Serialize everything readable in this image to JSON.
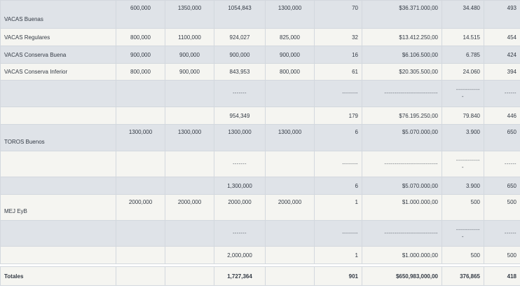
{
  "rows": [
    {
      "label": "VACAS Buenas",
      "c1": "600,000",
      "c2": "1350,000",
      "c3": "1054,843",
      "c4": "1300,000",
      "c5": "70",
      "c6": "$36.371.000,00",
      "c7": "34.480",
      "c8": "493"
    },
    {
      "label": "VACAS Regulares",
      "c1": "800,000",
      "c2": "1100,000",
      "c3": "924,027",
      "c4": "825,000",
      "c5": "32",
      "c6": "$13.412.250,00",
      "c7": "14.515",
      "c8": "454"
    },
    {
      "label": "VACAS Conserva Buena",
      "c1": "900,000",
      "c2": "900,000",
      "c3": "900,000",
      "c4": "900,000",
      "c5": "16",
      "c6": "$6.106.500,00",
      "c7": "6.785",
      "c8": "424"
    },
    {
      "label": "VACAS Conserva Inferior",
      "c1": "800,000",
      "c2": "900,000",
      "c3": "843,953",
      "c4": "800,000",
      "c5": "61",
      "c6": "$20.305.500,00",
      "c7": "24.060",
      "c8": "394"
    }
  ],
  "separators": {
    "c3": "-------",
    "c5": "--------",
    "c6": "---------------------------",
    "c7": "------------",
    "c7_minus": "-",
    "c8": "------"
  },
  "vacas_subtotal": {
    "c3": "954,349",
    "c5": "179",
    "c6": "$76.195.250,00",
    "c7": "79.840",
    "c8": "446"
  },
  "toros": {
    "label": "TOROS Buenos",
    "c1": "1300,000",
    "c2": "1300,000",
    "c3": "1300,000",
    "c4": "1300,000",
    "c5": "6",
    "c6": "$5.070.000,00",
    "c7": "3.900",
    "c8": "650"
  },
  "toros_subtotal": {
    "c3": "1,300,000",
    "c5": "6",
    "c6": "$5.070.000,00",
    "c7": "3.900",
    "c8": "650"
  },
  "mej": {
    "label": "MEJ EyB",
    "c1": "2000,000",
    "c2": "2000,000",
    "c3": "2000,000",
    "c4": "2000,000",
    "c5": "1",
    "c6": "$1.000.000,00",
    "c7": "500",
    "c8": "500"
  },
  "mej_subtotal": {
    "c3": "2,000,000",
    "c5": "1",
    "c6": "$1.000.000,00",
    "c7": "500",
    "c8": "500"
  },
  "totals": {
    "label": "Totales",
    "c3": "1,727,364",
    "c5": "901",
    "c6": "$650,983,000,00",
    "c7": "376,865",
    "c8": "418"
  }
}
